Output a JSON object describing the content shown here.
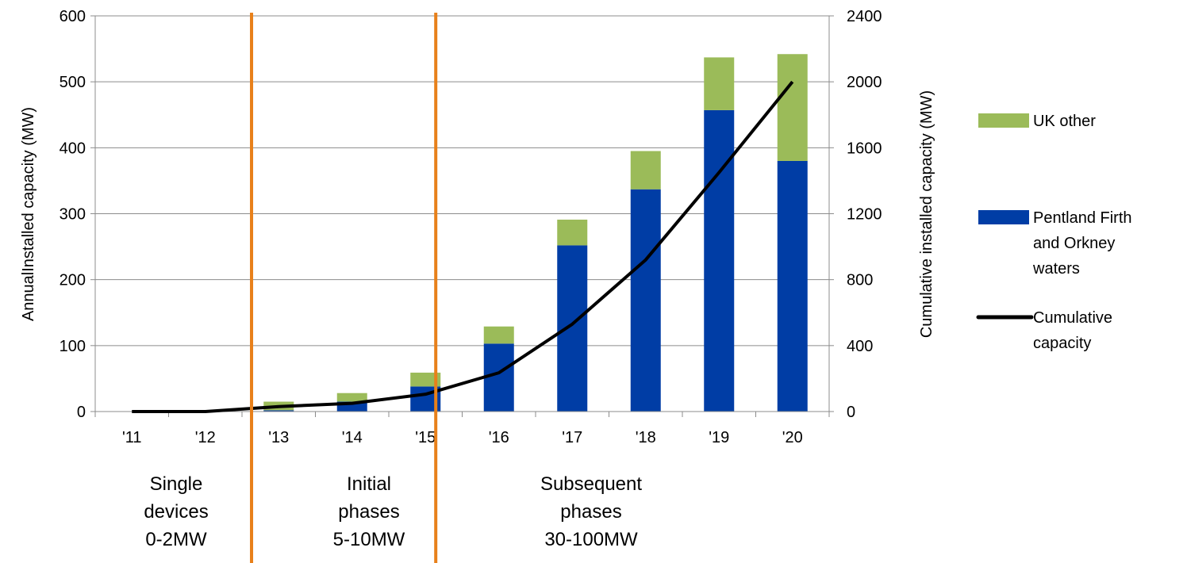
{
  "chart_data": {
    "type": "bar",
    "stacked": true,
    "categories": [
      "'11",
      "'12",
      "'13",
      "'14",
      "'15",
      "'16",
      "'17",
      "'18",
      "'19",
      "'20"
    ],
    "series": [
      {
        "name": "Pentland Firth and Orkney waters",
        "chart": "bar",
        "axis": "left",
        "color": "#003DA5",
        "values": [
          0,
          0,
          2,
          15,
          38,
          103,
          252,
          337,
          457,
          380
        ]
      },
      {
        "name": "UK other",
        "chart": "bar",
        "axis": "left",
        "color": "#9BBB59",
        "values": [
          0,
          0,
          13,
          13,
          21,
          26,
          39,
          58,
          80,
          162
        ]
      },
      {
        "name": "Cumulative capacity",
        "chart": "line",
        "axis": "right",
        "color": "#000000",
        "values": [
          0,
          0,
          30,
          50,
          105,
          235,
          530,
          920,
          1450,
          2000
        ]
      }
    ],
    "left_axis": {
      "label": "AnnualInstalled capacity (MW)",
      "range": [
        0,
        600
      ],
      "ticks": [
        "0",
        "100",
        "200",
        "300",
        "400",
        "500",
        "600"
      ]
    },
    "right_axis": {
      "label": "Cumulative installed capacity (MW)",
      "range": [
        0,
        2400
      ],
      "ticks": [
        "0",
        "400",
        "800",
        "1200",
        "1600",
        "2000",
        "2400"
      ]
    },
    "gridlines": true,
    "legend_position": "right",
    "legend": [
      {
        "label_lines": [
          "UK other"
        ],
        "color": "#9BBB59",
        "kind": "swatch"
      },
      {
        "label_lines": [
          "Pentland Firth",
          "and Orkney",
          "waters"
        ],
        "color": "#003DA5",
        "kind": "swatch"
      },
      {
        "label_lines": [
          "Cumulative",
          "capacity"
        ],
        "color": "#000000",
        "kind": "line"
      }
    ],
    "phase_divider_color": "#E8801A",
    "phases": [
      {
        "lines": [
          "Single",
          "devices",
          "0-2MW"
        ]
      },
      {
        "lines": [
          "Initial",
          "phases",
          "5-10MW"
        ]
      },
      {
        "lines": [
          "Subsequent",
          "phases",
          "30-100MW"
        ]
      }
    ]
  }
}
